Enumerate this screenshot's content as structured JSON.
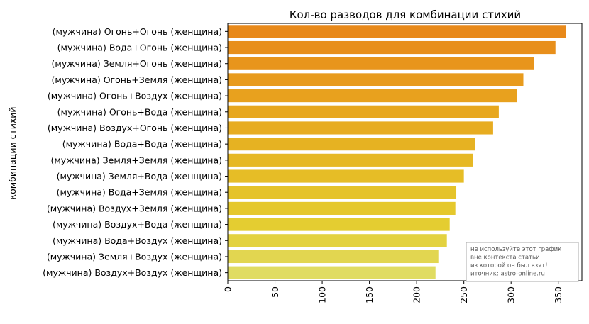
{
  "chart_data": {
    "type": "bar",
    "orientation": "horizontal",
    "title": "Кол-во разводов для комбинации стихий",
    "xlabel": "",
    "ylabel": "комбинации стихий",
    "xlim": [
      0,
      375
    ],
    "xticks": [
      0,
      50,
      100,
      150,
      200,
      250,
      300,
      350
    ],
    "grid": false,
    "categories": [
      "(мужчина) Огонь+Огонь (женщина)",
      "(мужчина) Вода+Огонь (женщина)",
      "(мужчина) Земля+Огонь (женщина)",
      "(мужчина) Огонь+Земля (женщина)",
      "(мужчина) Огонь+Воздух (женщина)",
      "(мужчина) Огонь+Вода (женщина)",
      "(мужчина) Воздух+Огонь (женщина)",
      "(мужчина) Вода+Вода (женщина)",
      "(мужчина) Земля+Земля (женщина)",
      "(мужчина) Земля+Вода (женщина)",
      "(мужчина) Вода+Земля (женщина)",
      "(мужчина) Воздух+Земля (женщина)",
      "(мужчина) Воздух+Вода (женщина)",
      "(мужчина) Вода+Воздух (женщина)",
      "(мужчина) Земля+Воздух (женщина)",
      "(мужчина) Воздух+Воздух (женщина)"
    ],
    "values": [
      358,
      347,
      324,
      313,
      306,
      287,
      281,
      262,
      260,
      250,
      242,
      241,
      235,
      232,
      223,
      220
    ],
    "colors": [
      "#e8891a",
      "#e88f1b",
      "#e8951c",
      "#e89b1d",
      "#e8a11e",
      "#e7a71f",
      "#e7ac20",
      "#e6b222",
      "#e6b824",
      "#e6bd26",
      "#e5c329",
      "#e5c82c",
      "#e4cd31",
      "#e3d240",
      "#e2d650",
      "#e0dc62"
    ],
    "annotation": [
      "не используйте этот график",
      "вне контекста статьи",
      "из которой он был взят!",
      "иточник: astro-online.ru"
    ]
  }
}
